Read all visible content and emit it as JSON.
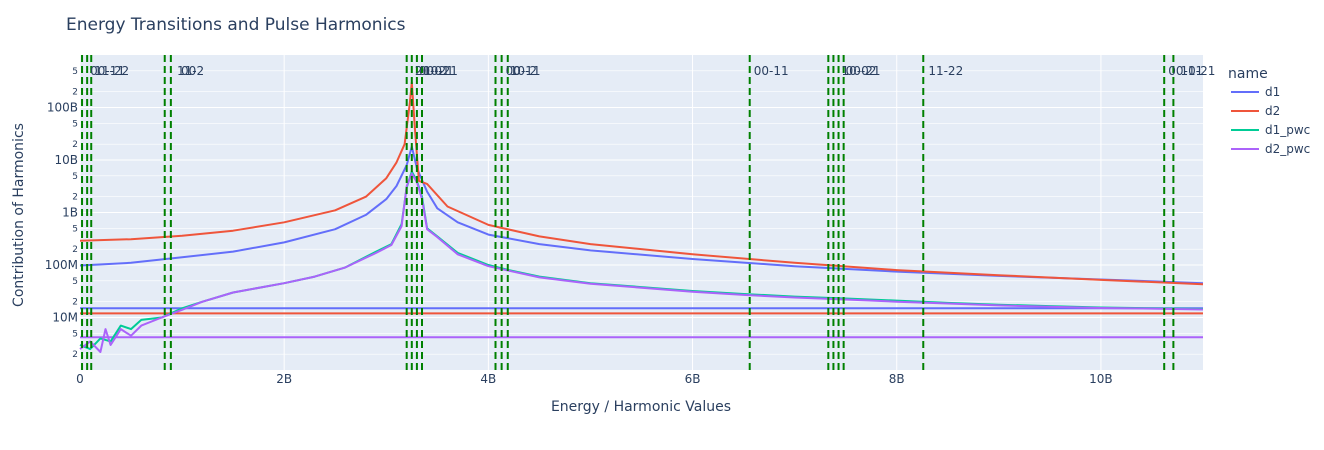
{
  "chart_data": {
    "type": "line",
    "title": "Energy Transitions and Pulse Harmonics",
    "xlabel": "Energy / Harmonic Values",
    "ylabel": "Contribution of Harmonics",
    "xlim": [
      0,
      11000000000
    ],
    "ylim_log": [
      1000000,
      1000000000000
    ],
    "y_scale": "log",
    "grid": true,
    "legend_position": "right",
    "legend_title": "name",
    "x_ticks": [
      {
        "v": 0,
        "label": "0"
      },
      {
        "v": 2000000000,
        "label": "2B"
      },
      {
        "v": 4000000000,
        "label": "4B"
      },
      {
        "v": 6000000000,
        "label": "6B"
      },
      {
        "v": 8000000000,
        "label": "8B"
      },
      {
        "v": 10000000000,
        "label": "10B"
      }
    ],
    "y_ticks": [
      {
        "v": 10000000,
        "label": "10M"
      },
      {
        "v": 100000000,
        "label": "100M"
      },
      {
        "v": 1000000000,
        "label": "1B"
      },
      {
        "v": 10000000000,
        "label": "10B"
      },
      {
        "v": 100000000000,
        "label": "100B"
      }
    ],
    "y_minor_ticks": [
      {
        "v": 2000000,
        "label": "2"
      },
      {
        "v": 5000000,
        "label": "5"
      },
      {
        "v": 20000000,
        "label": "2"
      },
      {
        "v": 50000000,
        "label": "5"
      },
      {
        "v": 200000000,
        "label": "2"
      },
      {
        "v": 500000000,
        "label": "5"
      },
      {
        "v": 2000000000,
        "label": "2"
      },
      {
        "v": 5000000000,
        "label": "5"
      },
      {
        "v": 20000000000,
        "label": "2"
      },
      {
        "v": 50000000000,
        "label": "5"
      },
      {
        "v": 200000000000,
        "label": "2"
      },
      {
        "v": 500000000000,
        "label": "5"
      }
    ],
    "colors": {
      "d1": "#636efa",
      "d2": "#ef553b",
      "d1_pwc": "#00cc96",
      "d2_pwc": "#ab63fa",
      "vline": "#008000",
      "plot_bg": "#e5ecf6",
      "grid": "#ffffff"
    },
    "series": [
      {
        "name": "d1",
        "color": "#636efa",
        "x": [
          0,
          500000000,
          1000000000,
          1500000000,
          2000000000,
          2500000000,
          2800000000,
          3000000000,
          3100000000,
          3200000000,
          3250000000,
          3300000000,
          3400000000,
          3500000000,
          3700000000,
          4000000000,
          4500000000,
          5000000000,
          6000000000,
          7000000000,
          8000000000,
          9000000000,
          10000000000,
          11000000000
        ],
        "y": [
          98000000,
          110000000,
          140000000,
          180000000,
          270000000,
          480000000,
          900000000,
          1800000000,
          3200000000,
          8000000000,
          18000000000,
          7000000000,
          2500000000,
          1200000000,
          650000000,
          380000000,
          250000000,
          190000000,
          130000000,
          95000000,
          75000000,
          62000000,
          53000000,
          45000000
        ]
      },
      {
        "name": "d2",
        "color": "#ef553b",
        "x": [
          0,
          500000000,
          1000000000,
          1500000000,
          2000000000,
          2500000000,
          2800000000,
          3000000000,
          3100000000,
          3180000000,
          3230000000,
          3250000000,
          3280000000,
          3320000000,
          3400000000,
          3600000000,
          4000000000,
          4500000000,
          5000000000,
          6000000000,
          7000000000,
          8000000000,
          9000000000,
          10000000000,
          11000000000
        ],
        "y": [
          290000000,
          310000000,
          360000000,
          450000000,
          650000000,
          1100000000,
          2000000000,
          4500000000,
          9000000000,
          20000000000,
          120000000000,
          300000000000,
          40000000000,
          4000000000,
          3500000000,
          1300000000,
          580000000,
          350000000,
          250000000,
          160000000,
          110000000,
          80000000,
          64000000,
          52000000,
          43000000
        ]
      },
      {
        "name": "d1_pwc",
        "color": "#00cc96",
        "x": [
          0,
          100000000,
          200000000,
          300000000,
          400000000,
          500000000,
          600000000,
          800000000,
          1000000000,
          1200000000,
          1500000000,
          2000000000,
          2300000000,
          2600000000,
          2900000000,
          3050000000,
          3150000000,
          3200000000,
          3250000000,
          3300000000,
          3350000000,
          3400000000,
          3500000000,
          3700000000,
          4000000000,
          4200000000,
          4500000000,
          5000000000,
          5500000000,
          6000000000,
          6500000000,
          7000000000,
          7500000000,
          8000000000,
          8500000000,
          9000000000,
          9500000000,
          10000000000,
          10500000000,
          11000000000
        ],
        "y": [
          3000000,
          2500000,
          4000000,
          3500000,
          7000000,
          6000000,
          9000000,
          10000000,
          15000000,
          20000000,
          30000000,
          45000000,
          60000000,
          90000000,
          180000000,
          250000000,
          600000000,
          3000000000,
          6000000000,
          4000000000,
          2000000000,
          500000000,
          350000000,
          170000000,
          100000000,
          80000000,
          60000000,
          45000000,
          38000000,
          32000000,
          28000000,
          25000000,
          23000000,
          21000000,
          19000000,
          17500000,
          16500000,
          15500000,
          15000000,
          14500000
        ]
      },
      {
        "name": "d2_pwc",
        "color": "#ab63fa",
        "x": [
          0,
          100000000,
          200000000,
          250000000,
          300000000,
          400000000,
          500000000,
          600000000,
          800000000,
          1000000000,
          1200000000,
          1500000000,
          2000000000,
          2300000000,
          2600000000,
          2900000000,
          3050000000,
          3150000000,
          3200000000,
          3250000000,
          3300000000,
          3350000000,
          3400000000,
          3500000000,
          3700000000,
          4000000000,
          4200000000,
          4500000000,
          5000000000,
          5500000000,
          6000000000,
          6500000000,
          7000000000,
          7500000000,
          8000000000,
          8500000000,
          9000000000,
          9500000000,
          10000000000,
          10500000000,
          11000000000
        ],
        "y": [
          2500000,
          3500000,
          2200000,
          6000000,
          3000000,
          6000000,
          4500000,
          7000000,
          10000000,
          14000000,
          20000000,
          30000000,
          45000000,
          60000000,
          90000000,
          170000000,
          240000000,
          550000000,
          3200000000,
          5500000000,
          3800000000,
          1800000000,
          480000000,
          340000000,
          160000000,
          95000000,
          78000000,
          58000000,
          44000000,
          37000000,
          31000000,
          27000000,
          24000000,
          22000000,
          20000000,
          18500000,
          17000000,
          16000000,
          15200000,
          14800000,
          14200000
        ]
      }
    ],
    "hlines": [
      {
        "y": 15000000,
        "color": "#636efa"
      },
      {
        "y": 12000000,
        "color": "#ef553b"
      },
      {
        "y": 4200000,
        "color": "#ab63fa"
      }
    ],
    "vlines": [
      {
        "x": 20000000
      },
      {
        "x": 70000000
      },
      {
        "x": 110000000
      },
      {
        "x": 830000000
      },
      {
        "x": 890000000
      },
      {
        "x": 3200000000
      },
      {
        "x": 3250000000
      },
      {
        "x": 3300000000
      },
      {
        "x": 3350000000
      },
      {
        "x": 4070000000
      },
      {
        "x": 4130000000
      },
      {
        "x": 4190000000
      },
      {
        "x": 6560000000
      },
      {
        "x": 7330000000
      },
      {
        "x": 7380000000
      },
      {
        "x": 7430000000
      },
      {
        "x": 7480000000
      },
      {
        "x": 8260000000
      },
      {
        "x": 10620000000
      },
      {
        "x": 10710000000
      }
    ],
    "vline_labels": [
      {
        "x": 80000000,
        "label": "00-11"
      },
      {
        "x": 120000000,
        "label": "11-22"
      },
      {
        "x": 930000000,
        "label": "11-2"
      },
      {
        "x": 970000000,
        "label": "00"
      },
      {
        "x": 3260000000,
        "label": "20-01"
      },
      {
        "x": 3300000000,
        "label": "00-21"
      },
      {
        "x": 3340000000,
        "label": "10-21"
      },
      {
        "x": 4150000000,
        "label": "00-11"
      },
      {
        "x": 4190000000,
        "label": "10-2"
      },
      {
        "x": 4220000000,
        "label": "0"
      },
      {
        "x": 6580000000,
        "label": "00-11"
      },
      {
        "x": 7440000000,
        "label": "10-02"
      },
      {
        "x": 7480000000,
        "label": "00-21"
      },
      {
        "x": 8290000000,
        "label": "11-22"
      },
      {
        "x": 10640000000,
        "label": "00-11"
      },
      {
        "x": 10760000000,
        "label": "10-21"
      }
    ]
  }
}
